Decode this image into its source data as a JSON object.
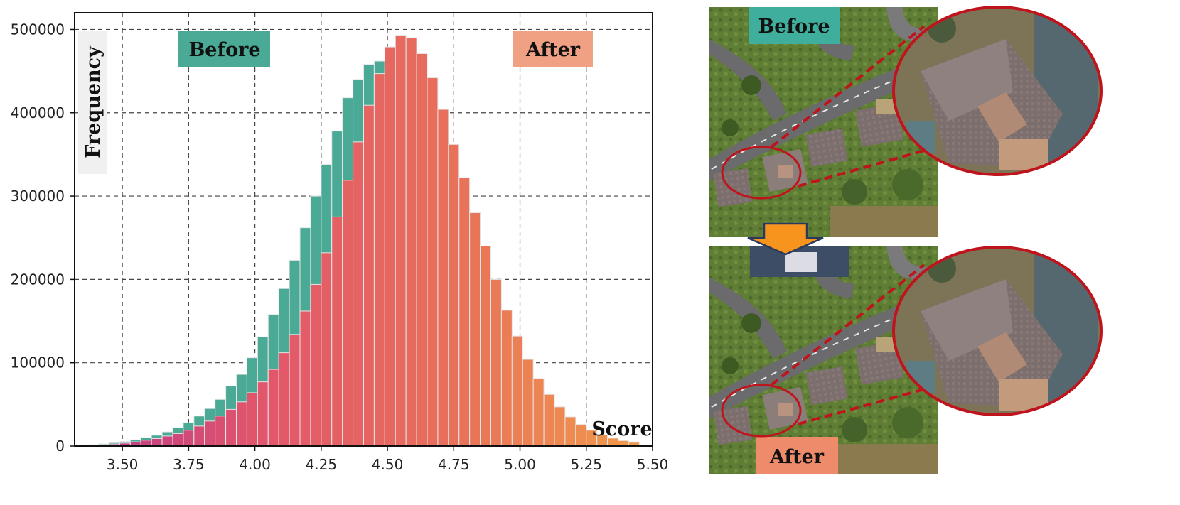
{
  "chart_data": {
    "type": "bar",
    "title": "",
    "xlabel": "Score",
    "ylabel": "Frequency",
    "xlim": [
      3.32,
      5.5
    ],
    "ylim": [
      0,
      520000
    ],
    "grid": true,
    "grid_style": "dashed",
    "legend_placement": "top",
    "x_ticks": [
      "3.50",
      "3.75",
      "4.00",
      "4.25",
      "4.50",
      "4.75",
      "5.00",
      "5.25",
      "5.50"
    ],
    "y_ticks": [
      "0",
      "100000",
      "200000",
      "300000",
      "400000",
      "500000"
    ],
    "bin_start": 3.29,
    "bin_width": 0.04,
    "series": [
      {
        "name": "Before",
        "color": "#4aaa96",
        "values": [
          500,
          1000,
          1500,
          2500,
          4000,
          5500,
          7500,
          10000,
          13000,
          17000,
          22000,
          28000,
          36000,
          45000,
          56000,
          72000,
          86000,
          106000,
          131000,
          158000,
          189000,
          223000,
          262000,
          300000,
          338000,
          378000,
          418000,
          440000,
          458000,
          462000,
          455000,
          450000,
          440000,
          415000,
          385000,
          352000,
          318000,
          278000,
          240000,
          203000,
          170000,
          140000,
          112000,
          90000,
          70000,
          54000,
          42000,
          32000,
          24000,
          18000,
          13000,
          9500,
          7000,
          5000
        ]
      },
      {
        "name": "After",
        "color_ramp": [
          "#b8368c",
          "#e2566b",
          "#e86f5b",
          "#f1994a"
        ],
        "values": [
          200,
          400,
          800,
          1500,
          2500,
          3500,
          5000,
          7000,
          9000,
          12000,
          15000,
          19000,
          24000,
          30000,
          36000,
          44000,
          53000,
          64000,
          77000,
          92000,
          112000,
          134000,
          162000,
          194000,
          232000,
          275000,
          319000,
          365000,
          409000,
          447000,
          479000,
          493000,
          490000,
          471000,
          442000,
          404000,
          362000,
          322000,
          280000,
          240000,
          200000,
          163000,
          132000,
          104000,
          81000,
          62000,
          47000,
          35000,
          26000,
          19000,
          13500,
          9500,
          6500,
          4500
        ]
      }
    ]
  },
  "chart_labels": {
    "before_tag": "Before",
    "after_tag": "After",
    "ylabel": "Frequency",
    "xlabel": "Score"
  },
  "images": {
    "top_label": "Before",
    "bottom_label": "After",
    "arrow_color": "#f7941d",
    "circle_color": "#c0141c",
    "top_caption_bg": "#3fae9c",
    "bottom_caption_bg": "#ee8b6a"
  }
}
